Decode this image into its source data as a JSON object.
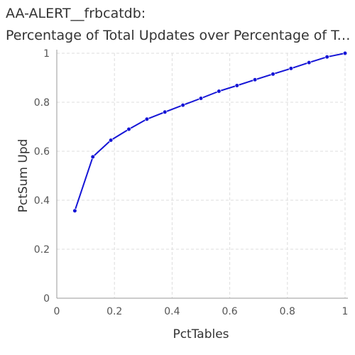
{
  "header": {
    "title_line1": "AA-ALERT__frbcatdb:",
    "title_line2": "Percentage of Total Updates over Percentage of Total..."
  },
  "chart_data": {
    "type": "line",
    "title": "AA-ALERT__frbcatdb: Percentage of Total Updates over Percentage of Total...",
    "xlabel": "PctTables",
    "ylabel": "PctSum Upd",
    "xlim": [
      0,
      1
    ],
    "ylim": [
      0,
      1
    ],
    "xticks": [
      "0",
      "0.2",
      "0.4",
      "0.6",
      "0.8",
      "1"
    ],
    "yticks": [
      "0",
      "0.2",
      "0.4",
      "0.6",
      "0.8",
      "1"
    ],
    "grid": true,
    "legend": "none",
    "line_color": "#1515d6",
    "series": [
      {
        "x": [
          0.0625,
          0.125,
          0.1875,
          0.25,
          0.3125,
          0.375,
          0.4375,
          0.5,
          0.5625,
          0.625,
          0.6875,
          0.75,
          0.8125,
          0.875,
          0.9375,
          1.0
        ],
        "values": [
          0.357,
          0.577,
          0.645,
          0.69,
          0.731,
          0.76,
          0.788,
          0.816,
          0.845,
          0.868,
          0.892,
          0.915,
          0.938,
          0.962,
          0.985,
          1.0
        ]
      }
    ]
  }
}
